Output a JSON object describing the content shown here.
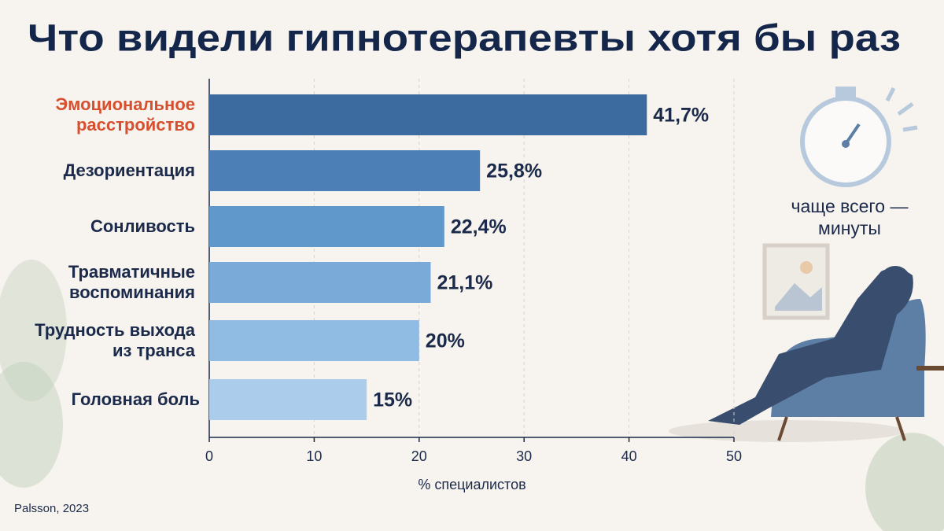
{
  "chart_data": {
    "type": "barh",
    "title": "Что видели гипнотерапевты хотя бы раз",
    "categories": [
      "Эмоциональное расстройство",
      "Дезориентация",
      "Сонливость",
      "Травматичные воспоминания",
      "Трудность выхода из транса",
      "Головная боль"
    ],
    "values": [
      41.7,
      25.8,
      22.4,
      21.1,
      20,
      15
    ],
    "value_labels": [
      "41,7%",
      "25,8%",
      "22,4%",
      "21,1%",
      "20%",
      "15%"
    ],
    "colors": [
      "#3b6b9f",
      "#4b7fb6",
      "#6198cb",
      "#79aad8",
      "#90bbe2",
      "#abcdeb"
    ],
    "highlight_index": 0,
    "highlight_color": "#d6502f",
    "xlim": [
      0,
      50
    ],
    "xticks": [
      0,
      10,
      20,
      30,
      40,
      50
    ],
    "xlabel": "% специалистов",
    "grid": true,
    "annotation": "чаще всего — минуты",
    "source": "Palsson, 2023"
  }
}
